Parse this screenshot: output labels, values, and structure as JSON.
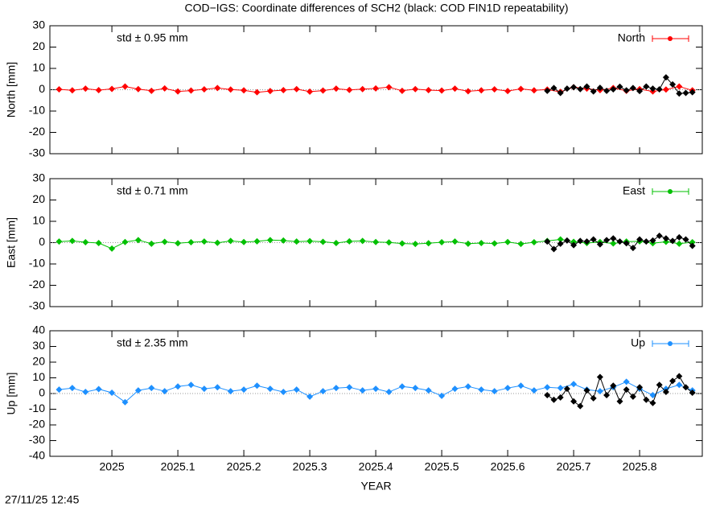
{
  "chart_data": [
    {
      "type": "line",
      "title": "COD−IGS: Coordinate differences of SCH2 (black: COD FIN1D repeatability)",
      "ylabel": "North [mm]",
      "annotation": "std ± 0.95 mm",
      "legend": "upper right",
      "zero_line": true,
      "xlim": [
        2024.906,
        2025.895
      ],
      "xticks": [
        2025,
        2025.1,
        2025.2,
        2025.3,
        2025.4,
        2025.5,
        2025.6,
        2025.7,
        2025.8
      ],
      "ylim": [
        -30,
        30
      ],
      "yticks": [
        -30,
        -20,
        -10,
        0,
        10,
        20,
        30
      ],
      "series": [
        {
          "name": "North",
          "color": "#ff0000",
          "x": [
            2024.92,
            2024.94,
            2024.96,
            2024.98,
            2025.0,
            2025.02,
            2025.04,
            2025.06,
            2025.08,
            2025.1,
            2025.12,
            2025.14,
            2025.16,
            2025.18,
            2025.2,
            2025.22,
            2025.24,
            2025.26,
            2025.28,
            2025.3,
            2025.32,
            2025.34,
            2025.36,
            2025.38,
            2025.4,
            2025.42,
            2025.44,
            2025.46,
            2025.48,
            2025.5,
            2025.52,
            2025.54,
            2025.56,
            2025.58,
            2025.6,
            2025.62,
            2025.64,
            2025.66,
            2025.68,
            2025.7,
            2025.72,
            2025.74,
            2025.76,
            2025.78,
            2025.8,
            2025.82,
            2025.84,
            2025.86,
            2025.88
          ],
          "values": [
            0.2,
            -0.3,
            0.5,
            -0.2,
            0.4,
            1.5,
            0.3,
            -0.5,
            0.6,
            -0.8,
            -0.4,
            0.2,
            0.8,
            0.1,
            -0.3,
            -1.2,
            -0.6,
            -0.2,
            0.3,
            -0.9,
            -0.4,
            0.5,
            -0.1,
            0.3,
            0.6,
            1.2,
            -0.5,
            0.3,
            -0.2,
            -0.4,
            0.5,
            -0.7,
            -0.3,
            0.2,
            -0.6,
            0.4,
            -0.3,
            0.1,
            -1.0,
            1.2,
            0.5,
            -0.2,
            0.8,
            -0.5,
            0.3,
            -0.8,
            0.1,
            1.5,
            -0.3
          ]
        },
        {
          "color": "#000000",
          "x": [
            2025.66,
            2025.67,
            2025.68,
            2025.69,
            2025.7,
            2025.71,
            2025.72,
            2025.73,
            2025.74,
            2025.75,
            2025.76,
            2025.77,
            2025.78,
            2025.79,
            2025.8,
            2025.81,
            2025.82,
            2025.83,
            2025.84,
            2025.85,
            2025.86,
            2025.87,
            2025.88
          ],
          "values": [
            -0.5,
            0.8,
            -1.5,
            0.5,
            1.2,
            0.3,
            1.5,
            -0.8,
            0.9,
            -0.5,
            0.2,
            1.4,
            -0.3,
            0.8,
            -0.6,
            1.5,
            0.5,
            0.2,
            5.8,
            2.5,
            -1.8,
            -1.5,
            -1.2
          ]
        }
      ]
    },
    {
      "type": "line",
      "ylabel": "East [mm]",
      "annotation": "std ± 0.71 mm",
      "legend": "upper right",
      "zero_line": true,
      "xlim": [
        2024.906,
        2025.895
      ],
      "xticks": [
        2025,
        2025.1,
        2025.2,
        2025.3,
        2025.4,
        2025.5,
        2025.6,
        2025.7,
        2025.8
      ],
      "ylim": [
        -30,
        30
      ],
      "yticks": [
        -30,
        -20,
        -10,
        0,
        10,
        20,
        30
      ],
      "series": [
        {
          "name": "East",
          "color": "#00c000",
          "x": [
            2024.92,
            2024.94,
            2024.96,
            2024.98,
            2025.0,
            2025.02,
            2025.04,
            2025.06,
            2025.08,
            2025.1,
            2025.12,
            2025.14,
            2025.16,
            2025.18,
            2025.2,
            2025.22,
            2025.24,
            2025.26,
            2025.28,
            2025.3,
            2025.32,
            2025.34,
            2025.36,
            2025.38,
            2025.4,
            2025.42,
            2025.44,
            2025.46,
            2025.48,
            2025.5,
            2025.52,
            2025.54,
            2025.56,
            2025.58,
            2025.6,
            2025.62,
            2025.64,
            2025.66,
            2025.68,
            2025.7,
            2025.72,
            2025.74,
            2025.76,
            2025.78,
            2025.8,
            2025.82,
            2025.84,
            2025.86,
            2025.88
          ],
          "values": [
            0.5,
            0.8,
            0.2,
            -0.2,
            -2.8,
            0.3,
            1.2,
            -0.5,
            0.4,
            -0.3,
            0.2,
            0.5,
            -0.1,
            0.8,
            0.3,
            0.6,
            1.2,
            1.0,
            0.5,
            0.7,
            0.4,
            -0.2,
            0.6,
            0.8,
            0.3,
            0.1,
            -0.4,
            -0.6,
            -0.3,
            0.2,
            0.5,
            -0.5,
            -0.2,
            -0.4,
            0.3,
            -0.6,
            0.2,
            0.8,
            1.5,
            0.4,
            -0.2,
            0.3,
            -0.4,
            0.5,
            0.6,
            -0.3,
            0.4,
            -0.5,
            0.2
          ]
        },
        {
          "color": "#000000",
          "x": [
            2025.66,
            2025.67,
            2025.68,
            2025.69,
            2025.7,
            2025.71,
            2025.72,
            2025.73,
            2025.74,
            2025.75,
            2025.76,
            2025.77,
            2025.78,
            2025.79,
            2025.8,
            2025.81,
            2025.82,
            2025.83,
            2025.84,
            2025.85,
            2025.86,
            2025.87,
            2025.88
          ],
          "values": [
            0.5,
            -3.0,
            -0.5,
            1.0,
            -1.2,
            0.8,
            0.5,
            1.5,
            -0.8,
            1.2,
            2.0,
            0.5,
            -0.3,
            -2.5,
            1.5,
            0.5,
            1.0,
            3.2,
            2.0,
            0.8,
            2.5,
            1.5,
            -1.5
          ]
        }
      ]
    },
    {
      "type": "line",
      "ylabel": "Up [mm]",
      "annotation": "std ± 2.35 mm",
      "legend": "upper right",
      "zero_line": true,
      "xlabel": "YEAR",
      "xlim": [
        2024.906,
        2025.895
      ],
      "xticks": [
        2025,
        2025.1,
        2025.2,
        2025.3,
        2025.4,
        2025.5,
        2025.6,
        2025.7,
        2025.8
      ],
      "ylim": [
        -40,
        40
      ],
      "yticks": [
        -40,
        -30,
        -20,
        -10,
        0,
        10,
        20,
        30,
        40
      ],
      "series": [
        {
          "name": "Up",
          "color": "#1e90ff",
          "x": [
            2024.92,
            2024.94,
            2024.96,
            2024.98,
            2025.0,
            2025.02,
            2025.04,
            2025.06,
            2025.08,
            2025.1,
            2025.12,
            2025.14,
            2025.16,
            2025.18,
            2025.2,
            2025.22,
            2025.24,
            2025.26,
            2025.28,
            2025.3,
            2025.32,
            2025.34,
            2025.36,
            2025.38,
            2025.4,
            2025.42,
            2025.44,
            2025.46,
            2025.48,
            2025.5,
            2025.52,
            2025.54,
            2025.56,
            2025.58,
            2025.6,
            2025.62,
            2025.64,
            2025.66,
            2025.68,
            2025.7,
            2025.72,
            2025.74,
            2025.76,
            2025.78,
            2025.8,
            2025.82,
            2025.84,
            2025.86,
            2025.88
          ],
          "values": [
            2.5,
            3.5,
            1.0,
            2.8,
            0.5,
            -5.5,
            2.0,
            3.5,
            1.5,
            4.5,
            5.5,
            3.0,
            4.0,
            1.5,
            2.5,
            5.0,
            3.0,
            1.0,
            2.5,
            -2.0,
            1.5,
            3.5,
            4.0,
            2.0,
            3.0,
            1.0,
            4.5,
            3.5,
            2.0,
            -1.5,
            3.0,
            4.5,
            2.5,
            1.5,
            3.5,
            5.0,
            2.0,
            4.0,
            3.5,
            6.0,
            2.5,
            1.5,
            4.0,
            7.5,
            3.0,
            -1.0,
            3.0,
            5.5,
            2.0
          ]
        },
        {
          "color": "#000000",
          "x": [
            2025.66,
            2025.67,
            2025.68,
            2025.69,
            2025.7,
            2025.71,
            2025.72,
            2025.73,
            2025.74,
            2025.75,
            2025.76,
            2025.77,
            2025.78,
            2025.79,
            2025.8,
            2025.81,
            2025.82,
            2025.83,
            2025.84,
            2025.85,
            2025.86,
            2025.87,
            2025.88
          ],
          "values": [
            -1.0,
            -4.0,
            -2.5,
            3.0,
            -5.0,
            -8.0,
            2.0,
            -3.0,
            10.5,
            -1.0,
            5.0,
            -5.0,
            2.5,
            -2.0,
            4.0,
            -4.0,
            -6.0,
            5.5,
            1.0,
            8.0,
            11.0,
            4.0,
            0.5
          ]
        }
      ]
    }
  ],
  "footer": "27/11/25 12:45"
}
